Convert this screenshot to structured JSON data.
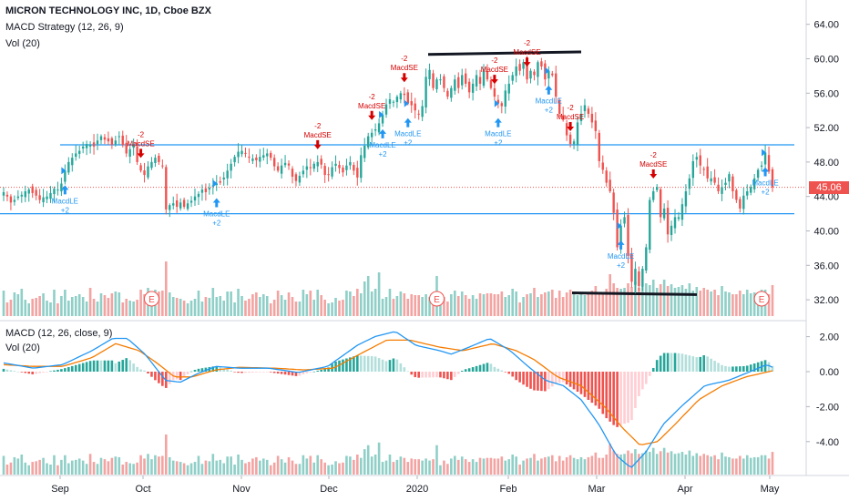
{
  "legend": {
    "symbol": "MICRON TECHNOLOGY INC, 1D, Cboe BZX",
    "strategy": "MACD Strategy (12, 26, 9)",
    "volume_main": "Vol (20)",
    "macd": "MACD (12, 26, close, 9)",
    "volume_lower": "Vol (20)"
  },
  "colors": {
    "up": "#26a69a",
    "down": "#ef5350",
    "vol_up": "#8fcfc7",
    "vol_down": "#f3a3a1",
    "macd_line": "#2196f3",
    "signal_line": "#f57c00",
    "hline": "#2196f3",
    "price_line": "#ef5350",
    "le_marker": "#2196f3",
    "se_marker": "#d50000"
  },
  "last_price_label": "45.06",
  "x_axis_labels": [
    "Sep",
    "Oct",
    "Nov",
    "Dec",
    "2020",
    "Feb",
    "Mar",
    "Apr",
    "May"
  ],
  "earnings_label": "E",
  "chart_data": [
    {
      "type": "candlestick",
      "title": "MICRON TECHNOLOGY INC, 1D, Cboe BZX",
      "y_ticks": [
        "64.00",
        "60.00",
        "56.00",
        "52.00",
        "48.00",
        "44.00",
        "40.00",
        "36.00",
        "32.00"
      ],
      "ylim": [
        29.5,
        65
      ],
      "last_price": 45.06,
      "x_labels": [
        "Sep",
        "Oct",
        "Nov",
        "Dec",
        "2020",
        "Feb",
        "Mar",
        "Apr",
        "May"
      ],
      "close_series": [
        44.5,
        44.0,
        43.3,
        43.6,
        44.0,
        44.2,
        44.6,
        44.8,
        44.4,
        44.1,
        43.6,
        43.9,
        44.0,
        44.4,
        44.9,
        44.8,
        45.5,
        47.0,
        48.0,
        48.5,
        49.0,
        49.3,
        49.8,
        50.1,
        50.0,
        49.8,
        50.5,
        51.0,
        50.6,
        50.4,
        50.0,
        50.5,
        51.0,
        50.0,
        49.0,
        49.5,
        50.0,
        48.0,
        47.0,
        46.5,
        47.5,
        48.0,
        48.5,
        48.0,
        47.5,
        42.5,
        43.0,
        43.2,
        42.8,
        43.3,
        42.8,
        43.2,
        43.5,
        44.0,
        44.3,
        44.8,
        44.5,
        45.0,
        45.3,
        45.5,
        45.6,
        46.2,
        47.0,
        47.8,
        48.6,
        49.2,
        49.3,
        49.0,
        48.5,
        48.4,
        48.2,
        48.6,
        48.8,
        49.0,
        48.5,
        47.5,
        47.0,
        47.6,
        47.9,
        47.6,
        46.3,
        45.8,
        46.4,
        47.0,
        47.5,
        47.3,
        47.8,
        48.0,
        47.7,
        46.5,
        46.5,
        47.4,
        47.8,
        47.3,
        46.8,
        47.6,
        48.0,
        47.0,
        46.2,
        48.8,
        49.9,
        51.0,
        51.4,
        51.8,
        52.5,
        53.5,
        54.7,
        55.3,
        55.0,
        55.6,
        56.0,
        55.8,
        54.8,
        54.6,
        54.0,
        53.6,
        54.5,
        57.9,
        58.7,
        56.6,
        57.6,
        57.6,
        56.6,
        55.6,
        56.6,
        57.6,
        56.6,
        58.1,
        57.1,
        56.1,
        57.1,
        58.1,
        57.1,
        58.6,
        57.6,
        56.6,
        55.6,
        54.8,
        54.5,
        56.3,
        57.1,
        58.1,
        59.1,
        58.6,
        59.6,
        57.6,
        58.6,
        58.1,
        59.6,
        59.1,
        57.6,
        58.6,
        58.1,
        55.6,
        53.6,
        52.9,
        51.1,
        50.1,
        50.4,
        52.6,
        53.6,
        54.6,
        53.6,
        52.6,
        51.6,
        48.1,
        47.1,
        45.6,
        44.6,
        42.1,
        38.1,
        40.6,
        41.6,
        37.1,
        34.1,
        35.6,
        33.6,
        35.6,
        38.1,
        43.6,
        44.6,
        45.1,
        41.6,
        42.6,
        39.6,
        40.6,
        41.6,
        41.6,
        43.1,
        44.6,
        46.1,
        48.1,
        48.6,
        47.6,
        47.1,
        46.1,
        46.1,
        45.6,
        44.6,
        45.1,
        45.6,
        46.6,
        44.6,
        43.6,
        42.6,
        44.1,
        44.6,
        45.1,
        46.1,
        47.1,
        47.6,
        49.1,
        46.9,
        45.06
      ],
      "horizontal_lines": [
        50.0,
        42.0
      ],
      "trend_segments": [
        {
          "from": 60.5,
          "to": 60.8
        },
        {
          "from": 32.8,
          "to": 32.6
        }
      ],
      "signals": [
        {
          "kind": "long",
          "label": "MacdLE",
          "qty": "+2",
          "day": 21
        },
        {
          "kind": "short",
          "label": "MacdSE",
          "qty": "-2",
          "day": 47
        },
        {
          "kind": "long",
          "label": "MacdLE",
          "qty": "+2",
          "day": 72
        },
        {
          "kind": "short",
          "label": "MacdSE",
          "qty": "-2",
          "day": 107
        },
        {
          "kind": "short",
          "label": "MacdSE",
          "qty": "-2",
          "day": 126
        },
        {
          "kind": "long",
          "label": "MacdLE",
          "qty": "+2",
          "day": 129
        },
        {
          "kind": "short",
          "label": "MacdSE",
          "qty": "-2",
          "day": 137
        },
        {
          "kind": "long",
          "label": "MacdLE",
          "qty": "+2",
          "day": 138
        },
        {
          "kind": "short",
          "label": "MacdSE",
          "qty": "-2",
          "day": 167
        },
        {
          "kind": "long",
          "label": "MacdLE",
          "qty": "+2",
          "day": 169
        },
        {
          "kind": "short",
          "label": "MacdSE",
          "qty": "-2",
          "day": 178
        },
        {
          "kind": "long",
          "label": "MacdLE",
          "qty": "+2",
          "day": 186
        },
        {
          "kind": "short",
          "label": "MacdSE",
          "qty": "-2",
          "day": 193
        },
        {
          "kind": "long",
          "label": "MacdLE",
          "qty": "+2",
          "day": 210
        },
        {
          "kind": "short",
          "label": "MacdSE",
          "qty": "-2",
          "day": 222
        },
        {
          "kind": "long",
          "label": "MacdLE",
          "qty": "+2",
          "day": 259
        }
      ],
      "earnings_days": [
        51,
        148,
        258
      ]
    },
    {
      "type": "macd",
      "title": "MACD (12, 26, close, 9)",
      "y_ticks": [
        "2.00",
        "0.00",
        "-2.00",
        "-4.00"
      ],
      "ylim": [
        -6,
        3.2
      ],
      "macd_keypoints": [
        [
          0,
          0.5
        ],
        [
          10,
          0.2
        ],
        [
          20,
          0.4
        ],
        [
          30,
          1.2
        ],
        [
          37,
          1.9
        ],
        [
          42,
          1.9
        ],
        [
          48,
          1.0
        ],
        [
          55,
          -0.5
        ],
        [
          60,
          -0.6
        ],
        [
          66,
          -0.1
        ],
        [
          72,
          0.3
        ],
        [
          80,
          0.2
        ],
        [
          90,
          0.2
        ],
        [
          100,
          -0.05
        ],
        [
          110,
          0.3
        ],
        [
          120,
          1.5
        ],
        [
          126,
          2.0
        ],
        [
          133,
          2.3
        ],
        [
          140,
          1.5
        ],
        [
          148,
          1.2
        ],
        [
          152,
          1.0
        ],
        [
          158,
          1.4
        ],
        [
          165,
          1.9
        ],
        [
          172,
          1.2
        ],
        [
          178,
          0.3
        ],
        [
          184,
          -0.5
        ],
        [
          190,
          -0.8
        ],
        [
          196,
          -1.6
        ],
        [
          202,
          -3.0
        ],
        [
          208,
          -4.8
        ],
        [
          213,
          -5.5
        ],
        [
          218,
          -4.6
        ],
        [
          224,
          -3.0
        ],
        [
          230,
          -2.0
        ],
        [
          238,
          -0.8
        ],
        [
          246,
          -0.5
        ],
        [
          252,
          -0.1
        ],
        [
          259,
          0.4
        ],
        [
          261,
          0.25
        ]
      ],
      "signal_keypoints": [
        [
          0,
          0.4
        ],
        [
          10,
          0.3
        ],
        [
          20,
          0.3
        ],
        [
          30,
          0.8
        ],
        [
          38,
          1.6
        ],
        [
          46,
          1.2
        ],
        [
          52,
          0.5
        ],
        [
          58,
          -0.3
        ],
        [
          64,
          -0.3
        ],
        [
          72,
          0.1
        ],
        [
          80,
          0.25
        ],
        [
          92,
          0.2
        ],
        [
          102,
          0.1
        ],
        [
          112,
          0.2
        ],
        [
          122,
          1.1
        ],
        [
          130,
          1.8
        ],
        [
          138,
          1.8
        ],
        [
          148,
          1.4
        ],
        [
          156,
          1.2
        ],
        [
          166,
          1.6
        ],
        [
          174,
          1.2
        ],
        [
          180,
          0.7
        ],
        [
          188,
          -0.3
        ],
        [
          196,
          -0.8
        ],
        [
          204,
          -2.0
        ],
        [
          210,
          -3.2
        ],
        [
          216,
          -4.2
        ],
        [
          222,
          -4.0
        ],
        [
          228,
          -3.0
        ],
        [
          236,
          -1.6
        ],
        [
          244,
          -0.8
        ],
        [
          252,
          -0.3
        ],
        [
          261,
          0.05
        ]
      ]
    },
    {
      "type": "bar",
      "title": "Vol (20)",
      "series": [
        {
          "name": "Vol (20)",
          "values": [
            28,
            15,
            18,
            26,
            24,
            30,
            18,
            14,
            19,
            20,
            22,
            25,
            17,
            15,
            29,
            14,
            22,
            29,
            17,
            21,
            22,
            24,
            21,
            16,
            31,
            19,
            16,
            25,
            23,
            20,
            25,
            27,
            26,
            15,
            19,
            17,
            16,
            18,
            29,
            24,
            31,
            23,
            29,
            27,
            28,
            60,
            26,
            21,
            20,
            19,
            17,
            14,
            17,
            19,
            28,
            16,
            21,
            20,
            31,
            21,
            22,
            17,
            27,
            27,
            15,
            30,
            22,
            17,
            19,
            24,
            26,
            21,
            24,
            22,
            14,
            18,
            28,
            23,
            18,
            26,
            21,
            16,
            16,
            29,
            24,
            28,
            18,
            29,
            23,
            18,
            14,
            15,
            20,
            17,
            18,
            28,
            27,
            22,
            30,
            25,
            38,
            44,
            27,
            30,
            48,
            19,
            21,
            30,
            19,
            22,
            27,
            25,
            19,
            24,
            23,
            23,
            21,
            24,
            21,
            23,
            44,
            14,
            21,
            16,
            24,
            28,
            22,
            27,
            23,
            19,
            23,
            19,
            25,
            24,
            25,
            25,
            24,
            24,
            27,
            21,
            23,
            30,
            27,
            15,
            21,
            24,
            25,
            31,
            21,
            24,
            26,
            27,
            29,
            20,
            28,
            21,
            26,
            29,
            25,
            23,
            26,
            23,
            26,
            28,
            33,
            25,
            25,
            30,
            46,
            36,
            31,
            30,
            31,
            36,
            32,
            38,
            31,
            32,
            36,
            34,
            40,
            31,
            35,
            40,
            33,
            35,
            31,
            32,
            34,
            30,
            36,
            28,
            32,
            28,
            31,
            29,
            27,
            29,
            23,
            33,
            27,
            26,
            24,
            24,
            28,
            24,
            29,
            25,
            26,
            26,
            29,
            29,
            24,
            34,
            32,
            24,
            29,
            30,
            32,
            32,
            26,
            23,
            21,
            27,
            30,
            21,
            23,
            28,
            19,
            30,
            29,
            21,
            29,
            28,
            24,
            31,
            29,
            30,
            21,
            28,
            23,
            27,
            19,
            25,
            27,
            27,
            30,
            21,
            23,
            18,
            19,
            26,
            23,
            20,
            28,
            35,
            32
          ]
        }
      ]
    }
  ]
}
